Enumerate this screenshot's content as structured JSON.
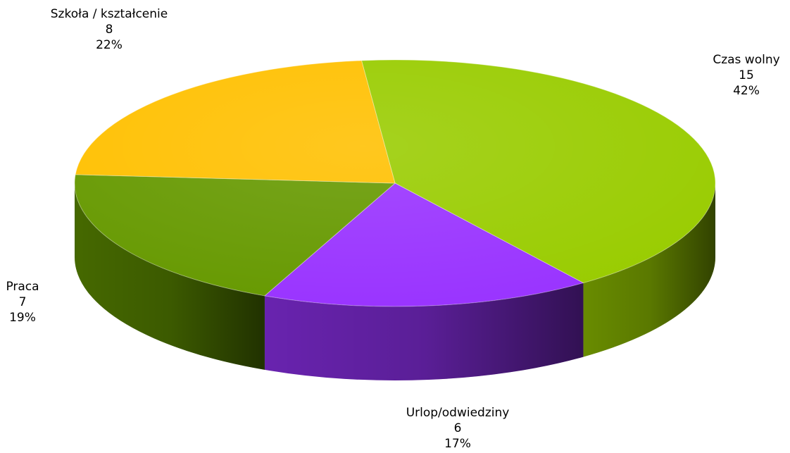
{
  "chart_data": {
    "type": "pie",
    "three_d": true,
    "title": "",
    "legend": "none",
    "slices": [
      {
        "label": "Czas wolny",
        "value": 15,
        "percent": "42%",
        "color": "#99CC00"
      },
      {
        "label": "Urlop/odwiedziny",
        "value": 6,
        "percent": "17%",
        "color": "#9933FF"
      },
      {
        "label": "Praca",
        "value": 7,
        "percent": "19%",
        "color": "#669900"
      },
      {
        "label": "Szkoła / kształcenie",
        "value": 8,
        "percent": "22%",
        "color": "#FFC000"
      }
    ]
  }
}
